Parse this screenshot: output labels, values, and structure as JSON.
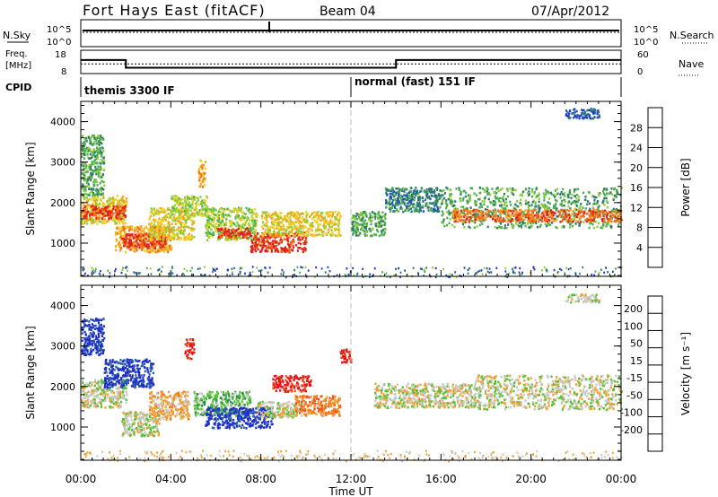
{
  "header": {
    "station": "Fort Hays East (fitACF)",
    "beam": "Beam 04",
    "date": "07/Apr/2012"
  },
  "strip_labels": {
    "nsky": "N.Sky",
    "nsearch": "N.Search",
    "freq": "Freq.",
    "freq_unit": "[MHz]",
    "nave": "Nave",
    "cpid": "CPID",
    "nsky_ticks": [
      "10^5",
      "10^0"
    ],
    "nsearch_ticks": [
      "10^5",
      "10^0"
    ],
    "freq_ticks": [
      "18",
      "8"
    ],
    "nave_ticks": [
      "60",
      "0"
    ]
  },
  "cpid_modes": [
    {
      "label": "themis 3300 IF",
      "start_hour": 0
    },
    {
      "label": "normal (fast) 151 IF",
      "start_hour": 12
    }
  ],
  "freq_trace": [
    [
      0,
      13.8
    ],
    [
      2,
      13.8
    ],
    [
      2,
      10.5
    ],
    [
      14,
      10.5
    ],
    [
      14,
      13.8
    ],
    [
      24,
      13.8
    ]
  ],
  "nave_trace": [
    [
      0,
      25
    ],
    [
      24,
      25
    ]
  ],
  "colors": {
    "power": [
      "#1f2fd6",
      "#1d52b5",
      "#2f7a6a",
      "#4caf4f",
      "#8fce3a",
      "#f2cf22",
      "#f6a21d",
      "#f26a1b",
      "#e2231a"
    ],
    "velocity": [
      "#1e2fc8",
      "#2a62a6",
      "#2e8a4f",
      "#52c233",
      "#c9c9c3",
      "#f1a030",
      "#f27a1b",
      "#ef4a1b",
      "#e51616"
    ]
  },
  "chart_data": [
    {
      "type": "heatmap",
      "name": "Power",
      "xlabel": "",
      "ylabel": "Slant Range [km]",
      "x_range_hours": [
        0,
        24
      ],
      "ylim": [
        180,
        4500
      ],
      "y_ticks": [
        1000,
        2000,
        3000,
        4000
      ],
      "colorbar_label": "Power [dB]",
      "colorbar_ticks": [
        4,
        8,
        12,
        16,
        20,
        24,
        28
      ],
      "colorbar_range": [
        0,
        32
      ],
      "regions": [
        {
          "t0": 0.0,
          "t1": 2.0,
          "r0": 1500,
          "r1": 2200,
          "level": 5
        },
        {
          "t0": 0.0,
          "t1": 2.0,
          "r0": 1620,
          "r1": 1950,
          "level": 8
        },
        {
          "t0": 0.0,
          "t1": 1.0,
          "r0": 2200,
          "r1": 3700,
          "level": 3
        },
        {
          "t0": 1.5,
          "t1": 4.0,
          "r0": 800,
          "r1": 1450,
          "level": 6
        },
        {
          "t0": 1.8,
          "t1": 3.8,
          "r0": 900,
          "r1": 1250,
          "level": 8
        },
        {
          "t0": 3.0,
          "t1": 5.0,
          "r0": 1100,
          "r1": 1900,
          "level": 5
        },
        {
          "t0": 4.0,
          "t1": 5.6,
          "r0": 1700,
          "r1": 2200,
          "level": 4
        },
        {
          "t0": 5.2,
          "t1": 5.5,
          "r0": 2400,
          "r1": 3100,
          "level": 6
        },
        {
          "t0": 5.5,
          "t1": 7.8,
          "r0": 1100,
          "r1": 1900,
          "level": 4
        },
        {
          "t0": 6.0,
          "t1": 7.5,
          "r0": 1150,
          "r1": 1400,
          "level": 8
        },
        {
          "t0": 7.5,
          "t1": 10.0,
          "r0": 800,
          "r1": 1300,
          "level": 8
        },
        {
          "t0": 8.0,
          "t1": 11.5,
          "r0": 1200,
          "r1": 1800,
          "level": 5
        },
        {
          "t0": 12.0,
          "t1": 13.5,
          "r0": 1200,
          "r1": 1800,
          "level": 3
        },
        {
          "t0": 13.5,
          "t1": 16.0,
          "r0": 1800,
          "r1": 2400,
          "level": 2
        },
        {
          "t0": 16.0,
          "t1": 24.0,
          "r0": 1400,
          "r1": 2400,
          "level": 3
        },
        {
          "t0": 16.5,
          "t1": 24.0,
          "r0": 1550,
          "r1": 1850,
          "level": 7
        },
        {
          "t0": 21.5,
          "t1": 23.0,
          "r0": 4100,
          "r1": 4350,
          "level": 1
        }
      ]
    },
    {
      "type": "heatmap",
      "name": "Velocity",
      "xlabel": "Time UT",
      "ylabel": "Slant Range [km]",
      "x_range_hours": [
        0,
        24
      ],
      "ylim": [
        180,
        4500
      ],
      "y_ticks": [
        1000,
        2000,
        3000,
        4000
      ],
      "x_tick_labels": [
        "00:00",
        "04:00",
        "08:00",
        "12:00",
        "16:00",
        "20:00",
        "00:00"
      ],
      "colorbar_label": "Velocity [m s⁻¹]",
      "colorbar_ticks": [
        200,
        100,
        50,
        15,
        -15,
        -50,
        -100,
        -200
      ],
      "regions": [
        {
          "t0": 0.0,
          "t1": 2.0,
          "r0": 1500,
          "r1": 2200,
          "level": 4
        },
        {
          "t0": 0.0,
          "t1": 1.0,
          "r0": 2800,
          "r1": 3700,
          "level": 0
        },
        {
          "t0": 1.0,
          "t1": 3.2,
          "r0": 2000,
          "r1": 2700,
          "level": 0
        },
        {
          "t0": 1.8,
          "t1": 3.5,
          "r0": 800,
          "r1": 1400,
          "level": 4
        },
        {
          "t0": 3.0,
          "t1": 4.8,
          "r0": 1200,
          "r1": 1900,
          "level": 5
        },
        {
          "t0": 4.6,
          "t1": 5.0,
          "r0": 2700,
          "r1": 3200,
          "level": 8
        },
        {
          "t0": 5.0,
          "t1": 7.5,
          "r0": 1300,
          "r1": 1900,
          "level": 3
        },
        {
          "t0": 5.5,
          "t1": 8.5,
          "r0": 1000,
          "r1": 1500,
          "level": 0
        },
        {
          "t0": 7.8,
          "t1": 9.8,
          "r0": 1250,
          "r1": 1650,
          "level": 4
        },
        {
          "t0": 8.5,
          "t1": 10.2,
          "r0": 1900,
          "r1": 2300,
          "level": 8
        },
        {
          "t0": 9.5,
          "t1": 11.5,
          "r0": 1300,
          "r1": 1800,
          "level": 6
        },
        {
          "t0": 11.5,
          "t1": 12.0,
          "r0": 2600,
          "r1": 2950,
          "level": 8
        },
        {
          "t0": 13.0,
          "t1": 17.5,
          "r0": 1500,
          "r1": 2100,
          "level": 4
        },
        {
          "t0": 17.5,
          "t1": 24.0,
          "r0": 1450,
          "r1": 2300,
          "level": 4
        },
        {
          "t0": 21.5,
          "t1": 23.0,
          "r0": 4100,
          "r1": 4300,
          "level": 4
        }
      ]
    }
  ]
}
